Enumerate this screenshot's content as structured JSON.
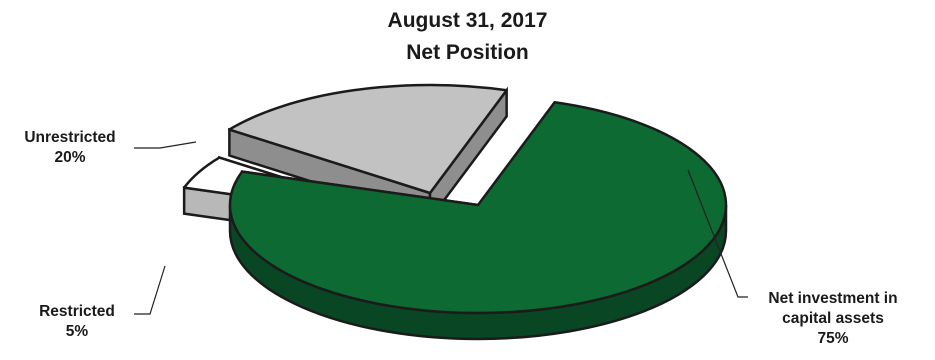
{
  "chart_data": {
    "type": "pie",
    "title": "August 31, 2017",
    "subtitle": "Net Position",
    "slices": [
      {
        "label_lines": [
          "Net investment in",
          "capital assets"
        ],
        "pct_label": "75%",
        "value": 75,
        "color": "#0d6a33",
        "side_color": "#094624",
        "exploded": false
      },
      {
        "label_lines": [
          "Restricted"
        ],
        "pct_label": "5%",
        "value": 5,
        "color": "#ffffff",
        "side_color": "#b8b8b8",
        "exploded": true
      },
      {
        "label_lines": [
          "Unrestricted"
        ],
        "pct_label": "20%",
        "value": 20,
        "color": "#c2c2c2",
        "side_color": "#8e8e8e",
        "exploded": true
      }
    ]
  }
}
